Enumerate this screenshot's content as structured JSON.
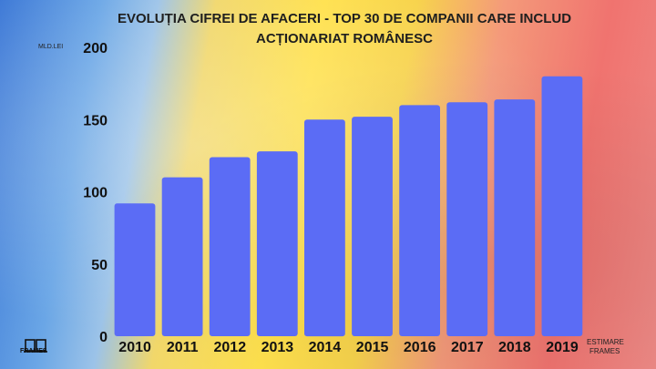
{
  "chart_data": {
    "type": "bar",
    "title_line1": "EVOLUȚIA CIFREI DE AFACERI - TOP 30 DE COMPANII CARE INCLUD",
    "title_line2": "ACȚIONARIAT ROMÂNESC",
    "unit_label": "MLD.LEI",
    "categories": [
      "2010",
      "2011",
      "2012",
      "2013",
      "2014",
      "2015",
      "2016",
      "2017",
      "2018",
      "2019"
    ],
    "values": [
      92,
      110,
      124,
      128,
      150,
      152,
      160,
      162,
      164,
      180
    ],
    "yticks": [
      0,
      50,
      100,
      150,
      200
    ],
    "ylim": [
      0,
      200
    ],
    "grid": false,
    "bar_color": "#5b6cf5",
    "note_lines": [
      "ESTIMARE",
      "FRAMES"
    ]
  },
  "brand": {
    "name": "FRAMES",
    "icon": "frames-logo-icon"
  }
}
